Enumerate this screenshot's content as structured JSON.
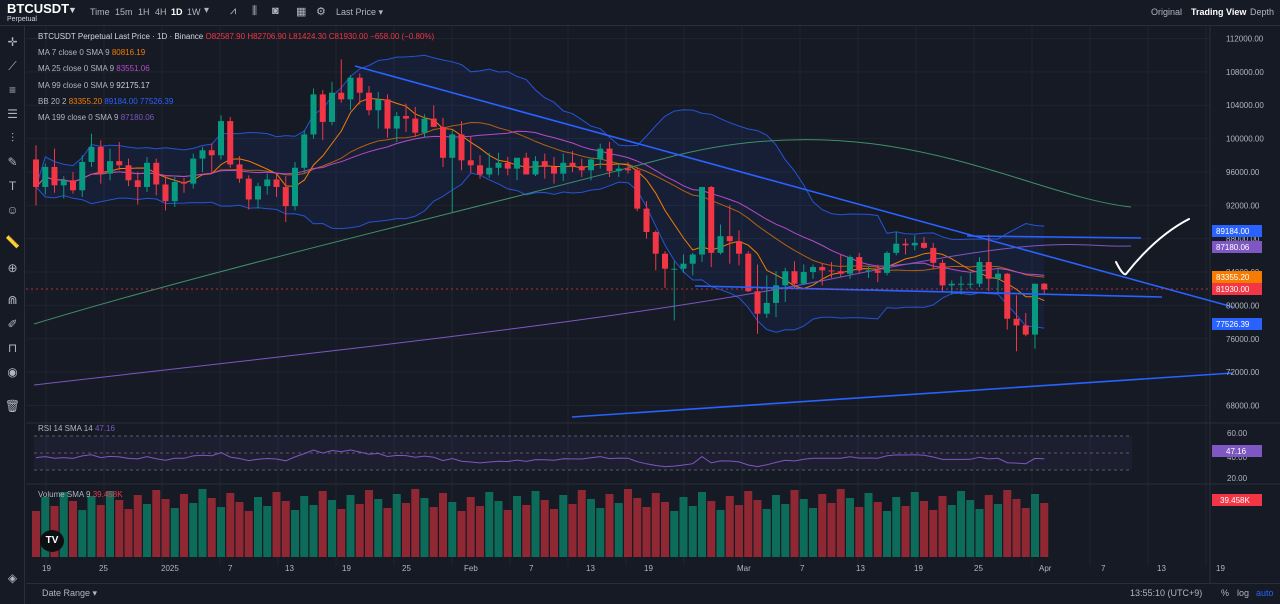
{
  "header": {
    "symbol": "BTCUSDT",
    "perpetual": "Perpetual",
    "intervals": [
      "Time",
      "15m",
      "1H",
      "4H",
      "1D",
      "1W"
    ],
    "active_interval": "1D",
    "last_price_label": "Last Price",
    "views": [
      "Original",
      "Trading View",
      "Depth"
    ],
    "active_view": "Trading View"
  },
  "legend": {
    "main": "BTCUSDT Perpetual Last Price · 1D · Binance",
    "ohlc": {
      "o": "O82587.90",
      "h": "H82706.90",
      "l": "L81424.30",
      "c": "C81930.00",
      "chg": "−658.00 (−0.80%)"
    },
    "ma7": {
      "label": "MA 7 close 0 SMA 9",
      "value": "80816.19"
    },
    "ma25": {
      "label": "MA 25 close 0 SMA 9",
      "value": "83551.06"
    },
    "ma99": {
      "label": "MA 99 close 0 SMA 9",
      "value": "92175.17"
    },
    "bb": {
      "label": "BB 20 2",
      "v1": "83355.20",
      "v2": "89184.00",
      "v3": "77526.39"
    },
    "ma199": {
      "label": "MA 199 close 0 SMA 9",
      "value": "87180.06"
    },
    "rsi": {
      "label": "RSI 14 SMA 14",
      "value": "47.16"
    },
    "volume": {
      "label": "Volume SMA 9",
      "value": "39.458K"
    }
  },
  "price_axis": {
    "ticks": [
      "112000.00",
      "108000.00",
      "104000.00",
      "100000.00",
      "96000.00",
      "92000.00",
      "88000.00",
      "84000.00",
      "80000.00",
      "76000.00",
      "72000.00",
      "68000.00"
    ],
    "tags": [
      {
        "text": "89184.00",
        "color": "#2962ff"
      },
      {
        "text": "87180.06",
        "color": "#7e57c2"
      },
      {
        "text": "83355.20",
        "color": "#f57c00"
      },
      {
        "text": "81930.00",
        "color": "#f23645"
      },
      {
        "text": "77526.39",
        "color": "#2962ff"
      }
    ]
  },
  "rsi_axis": {
    "ticks": [
      "60.00",
      "40.00",
      "20.00"
    ],
    "tag": "47.16"
  },
  "volume_tag": "39.458K",
  "time_axis": [
    "19",
    "25",
    "2025",
    "7",
    "13",
    "19",
    "25",
    "Feb",
    "7",
    "13",
    "19",
    "Mar",
    "7",
    "13",
    "19",
    "25",
    "Apr",
    "7",
    "13",
    "19"
  ],
  "footer": {
    "date_range": "Date Range",
    "clock": "13:55:10 (UTC+9)",
    "percent": "%",
    "log": "log",
    "auto": "auto"
  },
  "colors": {
    "up": "#089981",
    "down": "#f23645",
    "bg": "#161a25",
    "trendline": "#2962ff",
    "bb": "#2962ff",
    "ma7": "#f57c00",
    "ma25": "#b84ac9",
    "ma99": "#3f8f6a",
    "ma199": "#7e57c2"
  },
  "chart_data": {
    "type": "candlestick",
    "ylim": [
      66500,
      113500
    ],
    "ohlc": [
      [
        97500,
        99200,
        92000,
        94200
      ],
      [
        94200,
        97000,
        93300,
        96600
      ],
      [
        96600,
        98800,
        93500,
        94400
      ],
      [
        94400,
        95500,
        92800,
        95000
      ],
      [
        95000,
        96000,
        93400,
        93800
      ],
      [
        93800,
        98000,
        93000,
        97200
      ],
      [
        97200,
        100600,
        96600,
        99000
      ],
      [
        99000,
        99800,
        94600,
        95800
      ],
      [
        95800,
        98800,
        95000,
        97300
      ],
      [
        97300,
        99600,
        96200,
        96800
      ],
      [
        96800,
        97600,
        94300,
        95000
      ],
      [
        95000,
        96000,
        92100,
        94200
      ],
      [
        94200,
        97800,
        93600,
        97100
      ],
      [
        97100,
        97600,
        93200,
        94500
      ],
      [
        94500,
        95600,
        91400,
        92500
      ],
      [
        92500,
        95400,
        91800,
        94800
      ],
      [
        94800,
        95300,
        93500,
        94600
      ],
      [
        94600,
        98200,
        94000,
        97600
      ],
      [
        97600,
        99000,
        96000,
        98600
      ],
      [
        98600,
        99400,
        95800,
        98000
      ],
      [
        98000,
        102800,
        97500,
        102100
      ],
      [
        102100,
        102600,
        96500,
        96900
      ],
      [
        96900,
        97900,
        94700,
        95200
      ],
      [
        95200,
        95600,
        91500,
        92700
      ],
      [
        92700,
        94700,
        91600,
        94300
      ],
      [
        94300,
        95800,
        93300,
        95100
      ],
      [
        95100,
        95700,
        93000,
        94200
      ],
      [
        94200,
        95500,
        90000,
        91900
      ],
      [
        91900,
        97200,
        91400,
        96500
      ],
      [
        96500,
        101000,
        95800,
        100500
      ],
      [
        100500,
        106000,
        100000,
        105300
      ],
      [
        105300,
        105800,
        99800,
        102000
      ],
      [
        102000,
        106800,
        101600,
        105500
      ],
      [
        105500,
        109500,
        104300,
        104700
      ],
      [
        104700,
        107600,
        103400,
        107300
      ],
      [
        107300,
        107800,
        104100,
        105500
      ],
      [
        105500,
        106300,
        102800,
        103400
      ],
      [
        103400,
        105600,
        101200,
        104700
      ],
      [
        104700,
        105300,
        100100,
        101200
      ],
      [
        101200,
        103200,
        99600,
        102700
      ],
      [
        102700,
        104200,
        100800,
        102400
      ],
      [
        102400,
        103800,
        100200,
        100700
      ],
      [
        100700,
        102900,
        100100,
        102400
      ],
      [
        102400,
        104000,
        101400,
        101400
      ],
      [
        101400,
        102500,
        96600,
        97700
      ],
      [
        97700,
        101000,
        91200,
        100500
      ],
      [
        100500,
        102100,
        96200,
        97400
      ],
      [
        97400,
        100300,
        95900,
        96800
      ],
      [
        96800,
        98000,
        95200,
        95700
      ],
      [
        95700,
        98300,
        95300,
        96500
      ],
      [
        96500,
        98300,
        95600,
        97100
      ],
      [
        97100,
        97800,
        95600,
        96400
      ],
      [
        96400,
        97600,
        95000,
        97700
      ],
      [
        97700,
        98300,
        95700,
        95700
      ],
      [
        95700,
        97900,
        95500,
        97300
      ],
      [
        97300,
        98200,
        95200,
        96600
      ],
      [
        96600,
        97800,
        94600,
        95800
      ],
      [
        95800,
        98200,
        94900,
        97100
      ],
      [
        97100,
        98500,
        96000,
        96700
      ],
      [
        96700,
        97600,
        95400,
        96200
      ],
      [
        96200,
        97700,
        95000,
        97500
      ],
      [
        97500,
        99400,
        96400,
        98800
      ],
      [
        98800,
        99600,
        95400,
        96100
      ],
      [
        96100,
        97000,
        95400,
        96400
      ],
      [
        96400,
        97200,
        95800,
        96200
      ],
      [
        96200,
        96600,
        91300,
        91600
      ],
      [
        91600,
        92500,
        88000,
        88800
      ],
      [
        88800,
        89000,
        84200,
        86200
      ],
      [
        86200,
        86500,
        82100,
        84400
      ],
      [
        84400,
        85300,
        78200,
        84400
      ],
      [
        84400,
        86100,
        83900,
        85000
      ],
      [
        85000,
        86300,
        83600,
        86100
      ],
      [
        86100,
        94200,
        85200,
        94200
      ],
      [
        94200,
        94300,
        84600,
        86300
      ],
      [
        86300,
        89700,
        86100,
        88300
      ],
      [
        88300,
        92000,
        85000,
        87700
      ],
      [
        87700,
        89000,
        84800,
        86200
      ],
      [
        86200,
        86500,
        81600,
        81700
      ],
      [
        81700,
        84900,
        76600,
        79000
      ],
      [
        79000,
        83600,
        78500,
        80300
      ],
      [
        80300,
        84100,
        78600,
        82400
      ],
      [
        82400,
        84500,
        80400,
        84100
      ],
      [
        84100,
        85300,
        82100,
        82600
      ],
      [
        82600,
        84900,
        82500,
        84000
      ],
      [
        84000,
        84900,
        83200,
        84600
      ],
      [
        84600,
        85000,
        82400,
        84200
      ],
      [
        84200,
        85200,
        83300,
        84100
      ],
      [
        84100,
        86100,
        83400,
        83800
      ],
      [
        83800,
        86000,
        83200,
        85800
      ],
      [
        85800,
        86300,
        83800,
        84200
      ],
      [
        84200,
        84700,
        83300,
        84200
      ],
      [
        84200,
        84900,
        82800,
        83900
      ],
      [
        83900,
        86500,
        83600,
        86300
      ],
      [
        86300,
        88800,
        86000,
        87400
      ],
      [
        87400,
        88000,
        86100,
        87200
      ],
      [
        87200,
        88400,
        86600,
        87500
      ],
      [
        87500,
        88200,
        86800,
        86900
      ],
      [
        86900,
        87500,
        84400,
        85100
      ],
      [
        85100,
        85500,
        81700,
        82400
      ],
      [
        82400,
        83000,
        81300,
        82600
      ],
      [
        82600,
        83500,
        81300,
        82600
      ],
      [
        82600,
        84000,
        82000,
        82600
      ],
      [
        82600,
        85800,
        82200,
        85200
      ],
      [
        85200,
        88500,
        81700,
        83200
      ],
      [
        83200,
        84500,
        81500,
        83800
      ],
      [
        83800,
        83900,
        77100,
        78400
      ],
      [
        78400,
        81200,
        74500,
        77600
      ],
      [
        77600,
        79100,
        76300,
        76500
      ],
      [
        76500,
        82600,
        74800,
        82600
      ],
      [
        82600,
        82700,
        81400,
        81900
      ]
    ]
  }
}
